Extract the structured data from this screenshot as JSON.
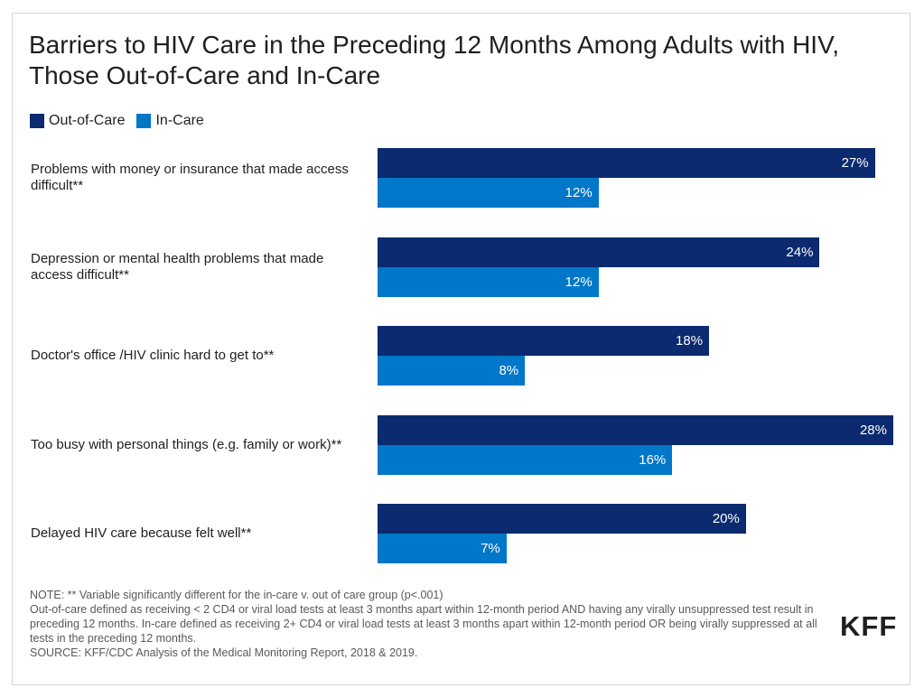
{
  "chart_data": {
    "type": "bar",
    "orientation": "horizontal",
    "title": "Barriers to HIV Care in the Preceding 12 Months Among Adults with HIV, Those Out-of-Care and In-Care",
    "categories": [
      "Problems with money or insurance that made access difficult**",
      "Depression or mental health problems that made access difficult**",
      "Doctor's office /HIV clinic hard to get to**",
      "Too busy with personal things (e.g. family or work)**",
      "Delayed HIV care because felt well**"
    ],
    "series": [
      {
        "name": "Out-of-Care",
        "values": [
          27,
          24,
          18,
          28,
          20
        ],
        "labels": [
          "27%",
          "24%",
          "18%",
          "28%",
          "20%"
        ],
        "color": "#0b2a6f"
      },
      {
        "name": "In-Care",
        "values": [
          12,
          12,
          8,
          16,
          7
        ],
        "labels": [
          "12%",
          "12%",
          "8%",
          "16%",
          "7%"
        ],
        "color": "#0077c8"
      }
    ],
    "unit": "%",
    "xlim": [
      0,
      28
    ],
    "grid": false,
    "legend_position": "top-left"
  },
  "notes": [
    "NOTE: ** Variable significantly different for the in-care v. out of care group (p<.001)",
    "Out-of-care defined as receiving < 2 CD4 or viral load tests at least 3 months apart within 12-month period AND having any virally unsuppressed test result in preceding 12 months. In-care defined as receiving 2+ CD4 or viral load tests at least 3 months apart within 12-month period OR being virally suppressed at all tests in the preceding 12 months.",
    "SOURCE: KFF/CDC Analysis of the Medical Monitoring Report, 2018 & 2019."
  ],
  "logo": "KFF"
}
